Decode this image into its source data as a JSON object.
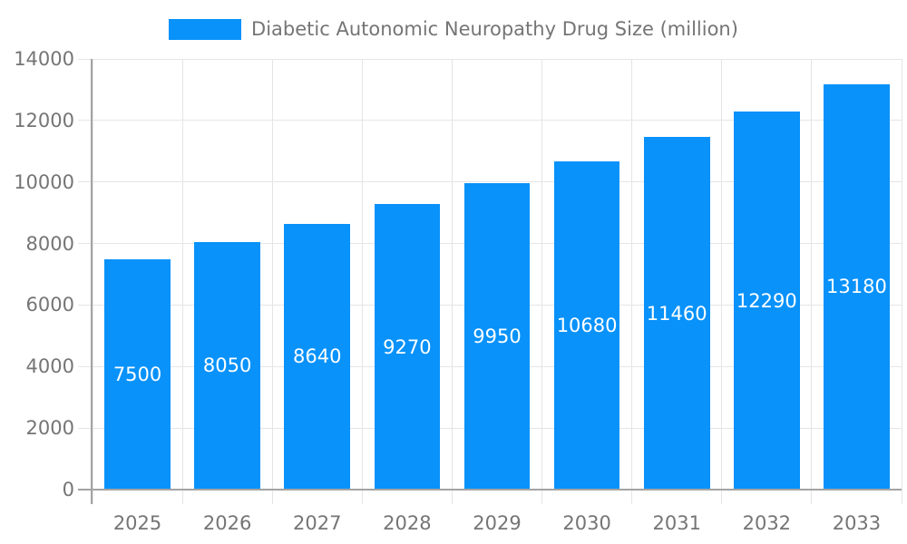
{
  "legend": {
    "label": "Diabetic Autonomic Neuropathy Drug Size (million)"
  },
  "chart_data": {
    "type": "bar",
    "title": "Diabetic Autonomic Neuropathy Drug Size (million)",
    "xlabel": "",
    "ylabel": "",
    "categories": [
      "2025",
      "2026",
      "2027",
      "2028",
      "2029",
      "2030",
      "2031",
      "2032",
      "2033"
    ],
    "series": [
      {
        "name": "Diabetic Autonomic Neuropathy Drug Size (million)",
        "color": "#0892fa",
        "values": [
          7500,
          8050,
          8640,
          9270,
          9950,
          10680,
          11460,
          12290,
          13180
        ]
      }
    ],
    "data_labels": [
      "7500",
      "8050",
      "8640",
      "9270",
      "9950",
      "10680",
      "11460",
      "12290",
      "13180"
    ],
    "ylim": [
      0,
      14000
    ],
    "yticks": [
      0,
      2000,
      4000,
      6000,
      8000,
      10000,
      12000,
      14000
    ],
    "grid": true,
    "legend_position": "top",
    "colors": {
      "bar": "#0892fa",
      "grid": "#e5e5e5",
      "tick": "#cccccc",
      "axis": "#a3a3a3",
      "text": "#757575",
      "bar_label": "#ffffff",
      "background": "#ffffff"
    }
  }
}
